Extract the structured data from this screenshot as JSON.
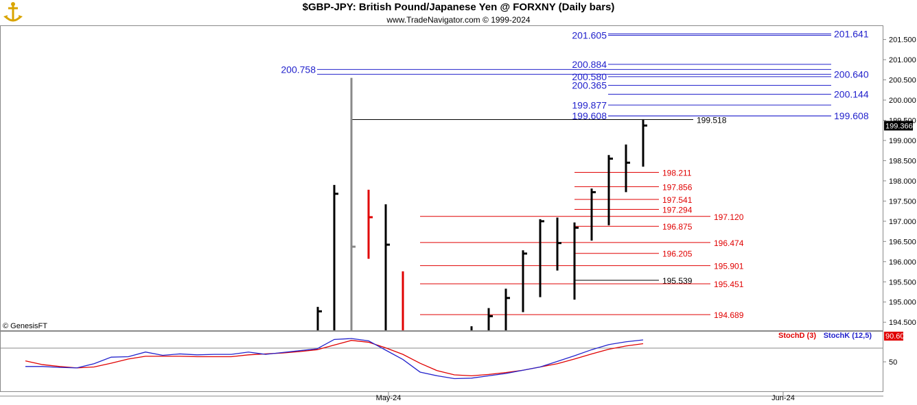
{
  "header": {
    "title": "$GBP-JPY:  British Pound/Japanese Yen @ FORXNY  (Daily bars)",
    "subtitle": "www.TradeNavigator.com © 1999-2024",
    "copyright": "© GenesisFT"
  },
  "colors": {
    "blue": "#2222cc",
    "red": "#e00000",
    "black": "#000000",
    "gray": "#888888",
    "frame": "#888888",
    "logo": "#d9a400"
  },
  "chart_data": [
    {
      "type": "ohlc",
      "name": "price-panel",
      "ylim": [
        194.3,
        201.85
      ],
      "y_ticks": [
        "201.500",
        "201.000",
        "200.500",
        "200.000",
        "199.500",
        "199.000",
        "198.500",
        "198.000",
        "197.500",
        "197.000",
        "196.500",
        "196.000",
        "195.500",
        "195.000",
        "194.500"
      ],
      "x_ticks": [
        "May-24",
        "Jun-24"
      ],
      "last_price": "199.366",
      "bars": [
        {
          "x": 463,
          "h": 194.88,
          "l": 194.3,
          "c": 194.77,
          "color": "black"
        },
        {
          "x": 487,
          "h": 197.9,
          "l": 194.3,
          "c": 197.68,
          "color": "black"
        },
        {
          "x": 512,
          "h": 200.55,
          "l": 194.3,
          "c": 196.37,
          "color": "gray"
        },
        {
          "x": 537,
          "h": 197.78,
          "l": 196.07,
          "c": 197.1,
          "color": "red"
        },
        {
          "x": 562,
          "h": 197.42,
          "l": 194.3,
          "c": 196.42,
          "color": "black"
        },
        {
          "x": 587,
          "h": 195.76,
          "l": 194.3,
          "c": 194.3,
          "color": "red"
        },
        {
          "x": 687,
          "h": 194.4,
          "l": 194.3,
          "c": 194.3,
          "color": "black"
        },
        {
          "x": 712,
          "h": 194.85,
          "l": 194.3,
          "c": 194.65,
          "color": "black"
        },
        {
          "x": 737,
          "h": 195.33,
          "l": 194.3,
          "c": 195.1,
          "color": "black"
        },
        {
          "x": 762,
          "h": 196.28,
          "l": 194.75,
          "c": 196.2,
          "color": "black"
        },
        {
          "x": 787,
          "h": 197.05,
          "l": 195.12,
          "c": 197.0,
          "color": "black"
        },
        {
          "x": 812,
          "h": 197.09,
          "l": 195.78,
          "c": 196.46,
          "color": "black"
        },
        {
          "x": 837,
          "h": 196.97,
          "l": 195.06,
          "c": 196.84,
          "color": "black"
        },
        {
          "x": 862,
          "h": 197.81,
          "l": 196.52,
          "c": 197.72,
          "color": "black"
        },
        {
          "x": 887,
          "h": 198.64,
          "l": 196.9,
          "c": 198.55,
          "color": "black"
        },
        {
          "x": 912,
          "h": 198.9,
          "l": 197.72,
          "c": 198.45,
          "color": "black"
        },
        {
          "x": 937,
          "h": 199.52,
          "l": 198.35,
          "c": 199.37,
          "color": "black"
        }
      ],
      "levels": [
        {
          "value": 201.605,
          "label": "201.605",
          "color": "blue",
          "side": "left",
          "span": "right"
        },
        {
          "value": 201.641,
          "label": "201.641",
          "color": "blue",
          "side": "right",
          "span": "right"
        },
        {
          "value": 200.884,
          "label": "200.884",
          "color": "blue",
          "side": "left",
          "span": "right"
        },
        {
          "value": 200.758,
          "label": "200.758",
          "color": "blue",
          "side": "left",
          "span": "wide"
        },
        {
          "value": 200.64,
          "label": "200.640",
          "color": "blue",
          "side": "right",
          "span": "wide"
        },
        {
          "value": 200.58,
          "label": "200.580",
          "color": "blue",
          "side": "left",
          "span": "right"
        },
        {
          "value": 200.365,
          "label": "200.365",
          "color": "blue",
          "side": "left",
          "span": "right"
        },
        {
          "value": 200.144,
          "label": "200.144",
          "color": "blue",
          "side": "right",
          "span": "right"
        },
        {
          "value": 199.877,
          "label": "199.877",
          "color": "blue",
          "side": "left",
          "span": "right"
        },
        {
          "value": 199.608,
          "label": "199.608",
          "color": "blue",
          "side": "left",
          "span": "right"
        },
        {
          "value": 199.608,
          "label": "199.608",
          "color": "blue",
          "side": "right",
          "span": "right"
        },
        {
          "value": 199.518,
          "label": "199.518",
          "color": "black",
          "side": "mid",
          "span": "mid"
        },
        {
          "value": 198.211,
          "label": "198.211",
          "color": "red",
          "side": "short",
          "span": "short"
        },
        {
          "value": 197.856,
          "label": "197.856",
          "color": "red",
          "side": "short",
          "span": "short"
        },
        {
          "value": 197.541,
          "label": "197.541",
          "color": "red",
          "side": "short",
          "span": "short"
        },
        {
          "value": 197.294,
          "label": "197.294",
          "color": "red",
          "side": "short",
          "span": "short"
        },
        {
          "value": 197.12,
          "label": "197.120",
          "color": "red",
          "side": "long",
          "span": "long"
        },
        {
          "value": 196.875,
          "label": "196.875",
          "color": "red",
          "side": "short",
          "span": "short"
        },
        {
          "value": 196.474,
          "label": "196.474",
          "color": "red",
          "side": "long",
          "span": "long"
        },
        {
          "value": 196.205,
          "label": "196.205",
          "color": "red",
          "side": "short",
          "span": "short"
        },
        {
          "value": 195.901,
          "label": "195.901",
          "color": "red",
          "side": "long",
          "span": "long"
        },
        {
          "value": 195.539,
          "label": "195.539",
          "color": "black",
          "side": "short",
          "span": "short"
        },
        {
          "value": 195.451,
          "label": "195.451",
          "color": "red",
          "side": "long",
          "span": "long"
        },
        {
          "value": 194.689,
          "label": "194.689",
          "color": "red",
          "side": "long",
          "span": "long"
        }
      ]
    },
    {
      "type": "line",
      "name": "stochastic-panel",
      "ylim": [
        0,
        100
      ],
      "y_ticks": [
        "50"
      ],
      "last_value": "90.60",
      "series": [
        {
          "name": "StochD (3)",
          "color": "red",
          "x": [
            37,
            62,
            87,
            112,
            137,
            162,
            187,
            212,
            237,
            262,
            287,
            312,
            337,
            362,
            387,
            412,
            437,
            462,
            487,
            512,
            537,
            562,
            587,
            612,
            637,
            662,
            687,
            712,
            737,
            762,
            787,
            812,
            837,
            862,
            887,
            912,
            937
          ],
          "y": [
            52,
            44,
            40,
            37,
            39,
            47,
            56,
            62,
            62,
            62,
            61,
            61,
            61,
            65,
            67,
            69,
            72,
            76,
            86,
            96,
            92,
            80,
            66,
            47,
            31,
            22,
            20,
            23,
            27,
            32,
            39,
            46,
            56,
            67,
            77,
            84,
            89
          ]
        },
        {
          "name": "StochK (12,5)",
          "color": "blue",
          "x": [
            37,
            62,
            87,
            112,
            137,
            162,
            187,
            212,
            237,
            262,
            287,
            312,
            337,
            362,
            387,
            412,
            437,
            462,
            487,
            512,
            537,
            562,
            587,
            612,
            637,
            662,
            687,
            712,
            737,
            762,
            787,
            812,
            837,
            862,
            887,
            912,
            937
          ],
          "y": [
            40,
            40,
            38,
            37,
            46,
            60,
            61,
            71,
            64,
            67,
            65,
            66,
            66,
            71,
            66,
            70,
            74,
            78,
            98,
            100,
            95,
            75,
            55,
            28,
            20,
            14,
            15,
            20,
            25,
            32,
            39,
            51,
            63,
            76,
            87,
            93,
            97
          ]
        }
      ]
    }
  ]
}
